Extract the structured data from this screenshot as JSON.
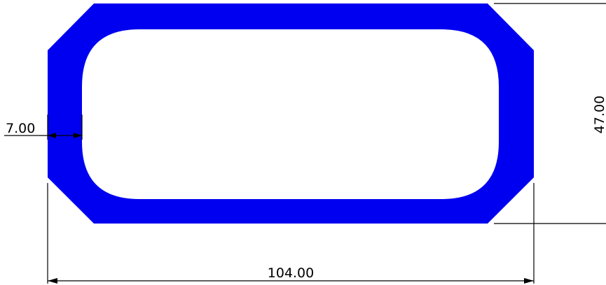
{
  "colors": {
    "profile_fill": "#0000f0",
    "background": "#ffffff",
    "dimension": "#000000"
  },
  "dimensions": {
    "wall_thickness": "7.00",
    "height": "47.00",
    "width": "104.00"
  }
}
